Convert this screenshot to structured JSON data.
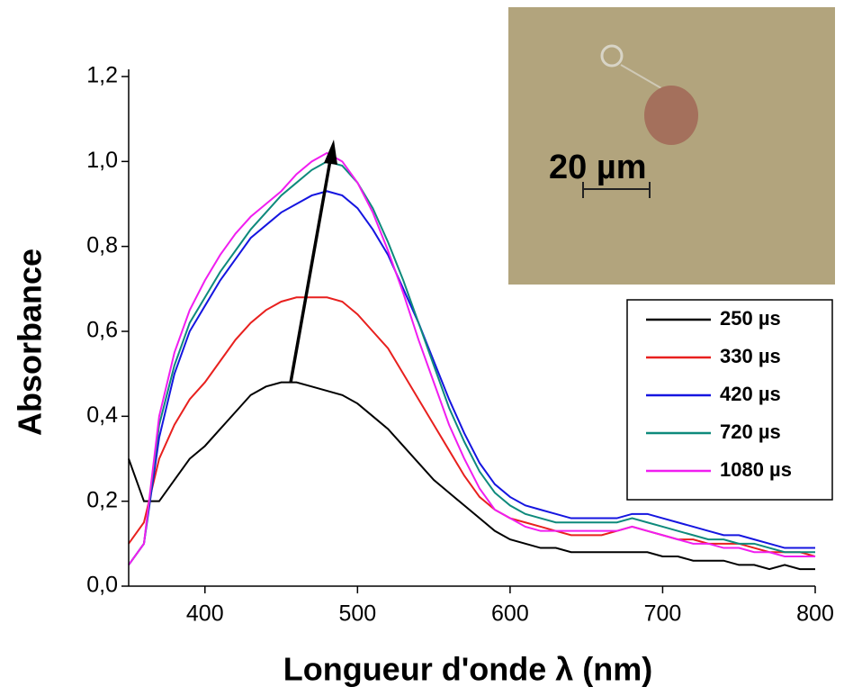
{
  "chart_data": {
    "type": "line",
    "xlabel": "Longueur d'onde λ (nm)",
    "ylabel": "Absorbance",
    "inset_label": "20 µm",
    "xlim": [
      350,
      800
    ],
    "ylim": [
      0,
      1.2
    ],
    "xticks": [
      400,
      500,
      600,
      700,
      800
    ],
    "yticks": [
      {
        "value": 0,
        "label": "0,0"
      },
      {
        "value": 0.2,
        "label": "0,2"
      },
      {
        "value": 0.4,
        "label": "0,4"
      },
      {
        "value": 0.6,
        "label": "0,6"
      },
      {
        "value": 0.8,
        "label": "0,8"
      },
      {
        "value": 1.0,
        "label": "1,0"
      },
      {
        "value": 1.2,
        "label": "1,2"
      }
    ],
    "x": [
      350,
      360,
      370,
      380,
      390,
      400,
      410,
      420,
      430,
      440,
      450,
      460,
      470,
      480,
      490,
      500,
      510,
      520,
      530,
      540,
      550,
      560,
      570,
      580,
      590,
      600,
      610,
      620,
      630,
      640,
      650,
      660,
      670,
      680,
      690,
      700,
      710,
      720,
      730,
      740,
      750,
      760,
      770,
      780,
      790,
      800
    ],
    "series": [
      {
        "name": "250 µs",
        "color": "#000000",
        "values": [
          0.3,
          0.2,
          0.2,
          0.25,
          0.3,
          0.33,
          0.37,
          0.41,
          0.45,
          0.47,
          0.48,
          0.48,
          0.47,
          0.46,
          0.45,
          0.43,
          0.4,
          0.37,
          0.33,
          0.29,
          0.25,
          0.22,
          0.19,
          0.16,
          0.13,
          0.11,
          0.1,
          0.09,
          0.09,
          0.08,
          0.08,
          0.08,
          0.08,
          0.08,
          0.08,
          0.07,
          0.07,
          0.06,
          0.06,
          0.06,
          0.05,
          0.05,
          0.04,
          0.05,
          0.04,
          0.04
        ]
      },
      {
        "name": "330 µs",
        "color": "#e8201e",
        "values": [
          0.1,
          0.15,
          0.3,
          0.38,
          0.44,
          0.48,
          0.53,
          0.58,
          0.62,
          0.65,
          0.67,
          0.68,
          0.68,
          0.68,
          0.67,
          0.64,
          0.6,
          0.56,
          0.5,
          0.44,
          0.38,
          0.32,
          0.26,
          0.21,
          0.18,
          0.16,
          0.15,
          0.14,
          0.13,
          0.12,
          0.12,
          0.12,
          0.13,
          0.14,
          0.13,
          0.12,
          0.11,
          0.11,
          0.1,
          0.1,
          0.1,
          0.09,
          0.08,
          0.08,
          0.08,
          0.07
        ]
      },
      {
        "name": "420 µs",
        "color": "#1515e0",
        "values": [
          0.05,
          0.1,
          0.35,
          0.5,
          0.6,
          0.66,
          0.72,
          0.77,
          0.82,
          0.85,
          0.88,
          0.9,
          0.92,
          0.93,
          0.92,
          0.89,
          0.84,
          0.78,
          0.7,
          0.62,
          0.53,
          0.44,
          0.36,
          0.29,
          0.24,
          0.21,
          0.19,
          0.18,
          0.17,
          0.16,
          0.16,
          0.16,
          0.16,
          0.17,
          0.17,
          0.16,
          0.15,
          0.14,
          0.13,
          0.12,
          0.12,
          0.11,
          0.1,
          0.09,
          0.09,
          0.09
        ]
      },
      {
        "name": "720 µs",
        "color": "#0e8a7c",
        "values": [
          0.05,
          0.1,
          0.38,
          0.52,
          0.62,
          0.68,
          0.74,
          0.79,
          0.84,
          0.88,
          0.92,
          0.95,
          0.98,
          1.0,
          0.99,
          0.95,
          0.89,
          0.81,
          0.72,
          0.62,
          0.52,
          0.42,
          0.34,
          0.27,
          0.22,
          0.19,
          0.17,
          0.16,
          0.15,
          0.15,
          0.15,
          0.15,
          0.15,
          0.16,
          0.15,
          0.14,
          0.13,
          0.12,
          0.11,
          0.11,
          0.1,
          0.1,
          0.09,
          0.08,
          0.08,
          0.08
        ]
      },
      {
        "name": "1080 µs",
        "color": "#f01ef0",
        "values": [
          0.05,
          0.1,
          0.4,
          0.55,
          0.65,
          0.72,
          0.78,
          0.83,
          0.87,
          0.9,
          0.93,
          0.97,
          1.0,
          1.02,
          1.0,
          0.95,
          0.88,
          0.79,
          0.69,
          0.58,
          0.48,
          0.38,
          0.3,
          0.23,
          0.18,
          0.16,
          0.14,
          0.13,
          0.13,
          0.13,
          0.13,
          0.13,
          0.13,
          0.14,
          0.13,
          0.12,
          0.11,
          0.1,
          0.1,
          0.09,
          0.09,
          0.08,
          0.08,
          0.07,
          0.07,
          0.07
        ]
      }
    ]
  }
}
